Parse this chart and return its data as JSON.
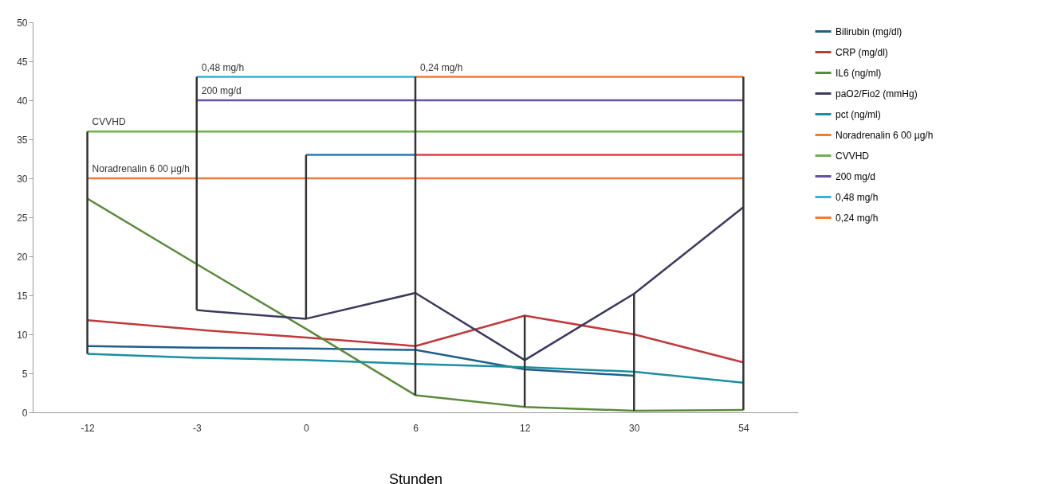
{
  "chart_data": {
    "type": "line",
    "xlabel": "Stunden",
    "categories": [
      "-12",
      "-3",
      "0",
      "6",
      "12",
      "30",
      "54"
    ],
    "ylim": [
      0,
      50
    ],
    "yticks": [
      0,
      5,
      10,
      15,
      20,
      25,
      30,
      35,
      40,
      45,
      50
    ],
    "grid": false,
    "legend": "right",
    "line_style": "solid",
    "series": [
      {
        "name": "Bilirubin (mg/dl)",
        "color": "#1f5f8b",
        "values": [
          8.5,
          8.3,
          8.2,
          8.0,
          5.5,
          4.7,
          null
        ]
      },
      {
        "name": "CRP (mg/dl)",
        "color": "#c0393b",
        "values": [
          11.8,
          10.6,
          9.6,
          8.5,
          12.4,
          10.0,
          6.4
        ]
      },
      {
        "name": "IL6  (ng/ml)",
        "color": "#5a8a3a",
        "values": [
          27.4,
          19.0,
          10.7,
          2.2,
          0.7,
          0.2,
          0.3
        ]
      },
      {
        "name": "paO2/Fio2 (mmHg)",
        "color": "#3b3a5e",
        "values": [
          null,
          13.1,
          12.0,
          15.3,
          6.7,
          15.2,
          26.3
        ]
      },
      {
        "name": "pct (ng/ml)",
        "color": "#1b8fa0",
        "values": [
          7.5,
          7.0,
          6.7,
          6.2,
          5.8,
          5.2,
          3.8
        ]
      },
      {
        "name": "Noradrenalin 6 00 µg/h",
        "color": "#f07a3a",
        "x": [
          "-12",
          "54"
        ],
        "values": [
          30,
          30
        ]
      },
      {
        "color": "#2a78c0",
        "x": [
          "0",
          "6"
        ],
        "values": [
          33,
          33
        ]
      },
      {
        "color": "#d9434a",
        "x": [
          "6",
          "54"
        ],
        "values": [
          33,
          33
        ]
      },
      {
        "name": "CVVHD",
        "color": "#6db14a",
        "x": [
          "-12",
          "54"
        ],
        "values": [
          36,
          36
        ]
      },
      {
        "name": "200 mg/d",
        "color": "#6a4fa0",
        "x": [
          "-3",
          "54"
        ],
        "values": [
          40,
          40
        ]
      },
      {
        "name": "0,48 mg/h",
        "color": "#31b5d6",
        "x": [
          "-3",
          "6"
        ],
        "values": [
          43,
          43
        ]
      },
      {
        "name": "0,24 mg/h",
        "color": "#f47b30",
        "x": [
          "6",
          "54"
        ],
        "values": [
          43,
          43
        ]
      },
      {
        "color": "#333333",
        "x": [
          "-12",
          "-12"
        ],
        "values": [
          36,
          7.5
        ]
      },
      {
        "color": "#333333",
        "x": [
          "-3",
          "-3"
        ],
        "values": [
          43,
          13.1
        ]
      },
      {
        "color": "#333333",
        "x": [
          "0",
          "0"
        ],
        "values": [
          33,
          12.0
        ]
      },
      {
        "color": "#333333",
        "x": [
          "6",
          "6"
        ],
        "values": [
          43,
          2.2
        ]
      },
      {
        "color": "#333333",
        "x": [
          "12",
          "12"
        ],
        "values": [
          12.4,
          0.7
        ]
      },
      {
        "color": "#333333",
        "x": [
          "30",
          "30"
        ],
        "values": [
          15.2,
          0.2
        ]
      },
      {
        "color": "#333333",
        "x": [
          "54",
          "54"
        ],
        "values": [
          43,
          0.3
        ]
      }
    ],
    "annotations": [
      {
        "text": "0,48 mg/h",
        "x": "-3",
        "y": 43
      },
      {
        "text": "0,24 mg/h",
        "x": "6",
        "y": 43
      },
      {
        "text": "200 mg/d",
        "x": "-3",
        "y": 40
      },
      {
        "text": "CVVHD",
        "x": "-12",
        "y": 36
      },
      {
        "text": "Noradrenalin 6 00 µg/h",
        "x": "-12",
        "y": 30
      }
    ]
  }
}
